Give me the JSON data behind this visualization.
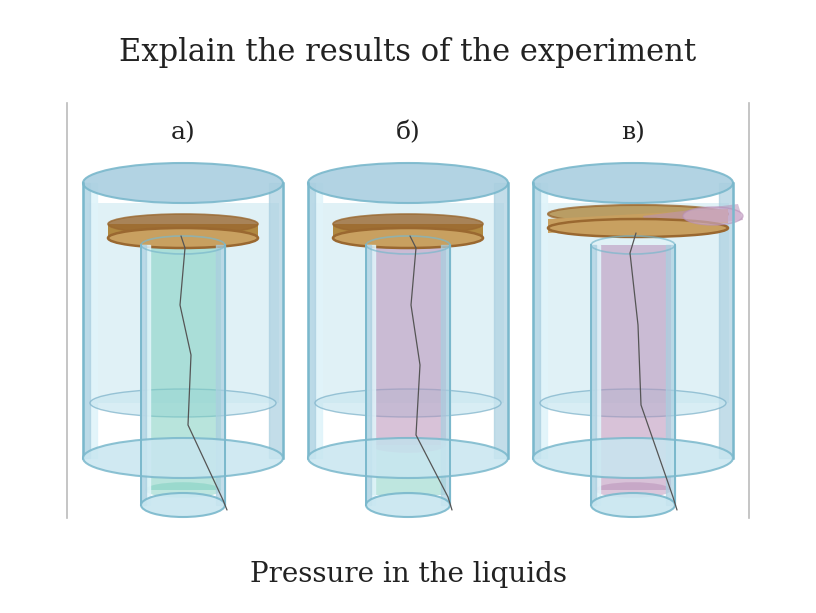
{
  "title": "Pressure in the liquids",
  "subtitle": "Explain the results of the experiment",
  "labels": [
    "a)",
    "б)",
    "в)"
  ],
  "bg_color": "#ffffff",
  "title_fontsize": 20,
  "subtitle_fontsize": 22,
  "label_fontsize": 18,
  "water_blue": "#aacfe0",
  "water_blue_dark": "#7ab0c8",
  "water_blue_fill": "#c8e6f0",
  "glass_edge": "#7ab8cc",
  "glass_highlight": "#e0f4fa",
  "inner_tube_teal_a": "#7ecfc0",
  "inner_tube_teal_top": "#a8ddd4",
  "purple_liquid": "#b890b8",
  "purple_liquid_light": "#d0b0d0",
  "disk_tan": "#c8a060",
  "disk_brown": "#9a6830",
  "disk_shadow": "#b08840",
  "border_color": "#bbbbbb",
  "text_color": "#222222",
  "thread_color": "#555555"
}
